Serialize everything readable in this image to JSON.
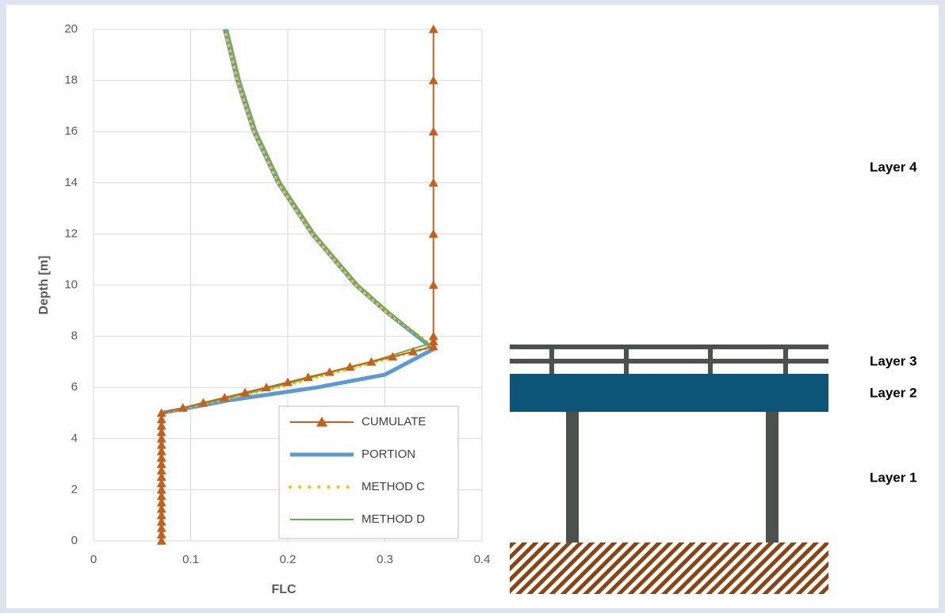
{
  "chart_data": {
    "type": "line",
    "xlabel": "FLC",
    "ylabel": "Depth [m]",
    "xlim": [
      0,
      0.4
    ],
    "xticks": [
      0,
      0.1,
      0.2,
      0.3,
      0.4
    ],
    "ylim": [
      0,
      20
    ],
    "yticks": [
      0,
      2,
      4,
      6,
      8,
      10,
      12,
      14,
      16,
      18,
      20
    ],
    "grid": true,
    "legend": "lower right",
    "series": [
      {
        "name": "PORTION",
        "color": "#5b9bd5",
        "style": "thick",
        "depth": [
          0,
          5,
          5.5,
          6,
          6.5,
          7.5,
          9,
          10,
          12,
          14,
          16,
          18,
          20
        ],
        "values": [
          0.07,
          0.07,
          0.14,
          0.23,
          0.3,
          0.35,
          0.3,
          0.27,
          0.225,
          0.19,
          0.165,
          0.148,
          0.135
        ]
      },
      {
        "name": "METHOD C",
        "color": "#ffc000",
        "style": "dotted",
        "depth": [
          0,
          5,
          6,
          7,
          7.6,
          9,
          10,
          12,
          14,
          16,
          18,
          20
        ],
        "values": [
          0.07,
          0.07,
          0.19,
          0.29,
          0.35,
          0.3,
          0.27,
          0.225,
          0.19,
          0.165,
          0.148,
          0.135
        ]
      },
      {
        "name": "METHOD D",
        "color": "#70ad47",
        "style": "thin",
        "depth": [
          0,
          5,
          6,
          7,
          7.7,
          9,
          10,
          12,
          14,
          16,
          18,
          20
        ],
        "values": [
          0.07,
          0.07,
          0.185,
          0.285,
          0.345,
          0.303,
          0.273,
          0.228,
          0.193,
          0.168,
          0.151,
          0.138
        ]
      },
      {
        "name": "CUMULATE",
        "color": "#c5601a",
        "style": "marker",
        "depth": [
          0,
          0.25,
          0.5,
          0.75,
          1,
          1.25,
          1.5,
          1.75,
          2,
          2.25,
          2.5,
          2.75,
          3,
          3.25,
          3.5,
          3.75,
          4,
          4.25,
          4.5,
          4.75,
          5,
          5.2,
          5.4,
          5.6,
          5.8,
          6,
          6.2,
          6.4,
          6.6,
          6.8,
          7,
          7.2,
          7.4,
          7.6,
          7.8,
          8,
          10,
          12,
          14,
          16,
          18,
          20
        ],
        "values": [
          0.07,
          0.07,
          0.07,
          0.07,
          0.07,
          0.07,
          0.07,
          0.07,
          0.07,
          0.07,
          0.07,
          0.07,
          0.07,
          0.07,
          0.07,
          0.07,
          0.07,
          0.07,
          0.07,
          0.07,
          0.07,
          0.092,
          0.113,
          0.135,
          0.156,
          0.178,
          0.2,
          0.221,
          0.243,
          0.264,
          0.286,
          0.308,
          0.329,
          0.35,
          0.35,
          0.35,
          0.35,
          0.35,
          0.35,
          0.35,
          0.35,
          0.35
        ]
      }
    ],
    "legend_order": [
      3,
      0,
      1,
      2
    ]
  },
  "layers": [
    "Layer 4",
    "Layer 3",
    "Layer 2",
    "Layer 1"
  ]
}
